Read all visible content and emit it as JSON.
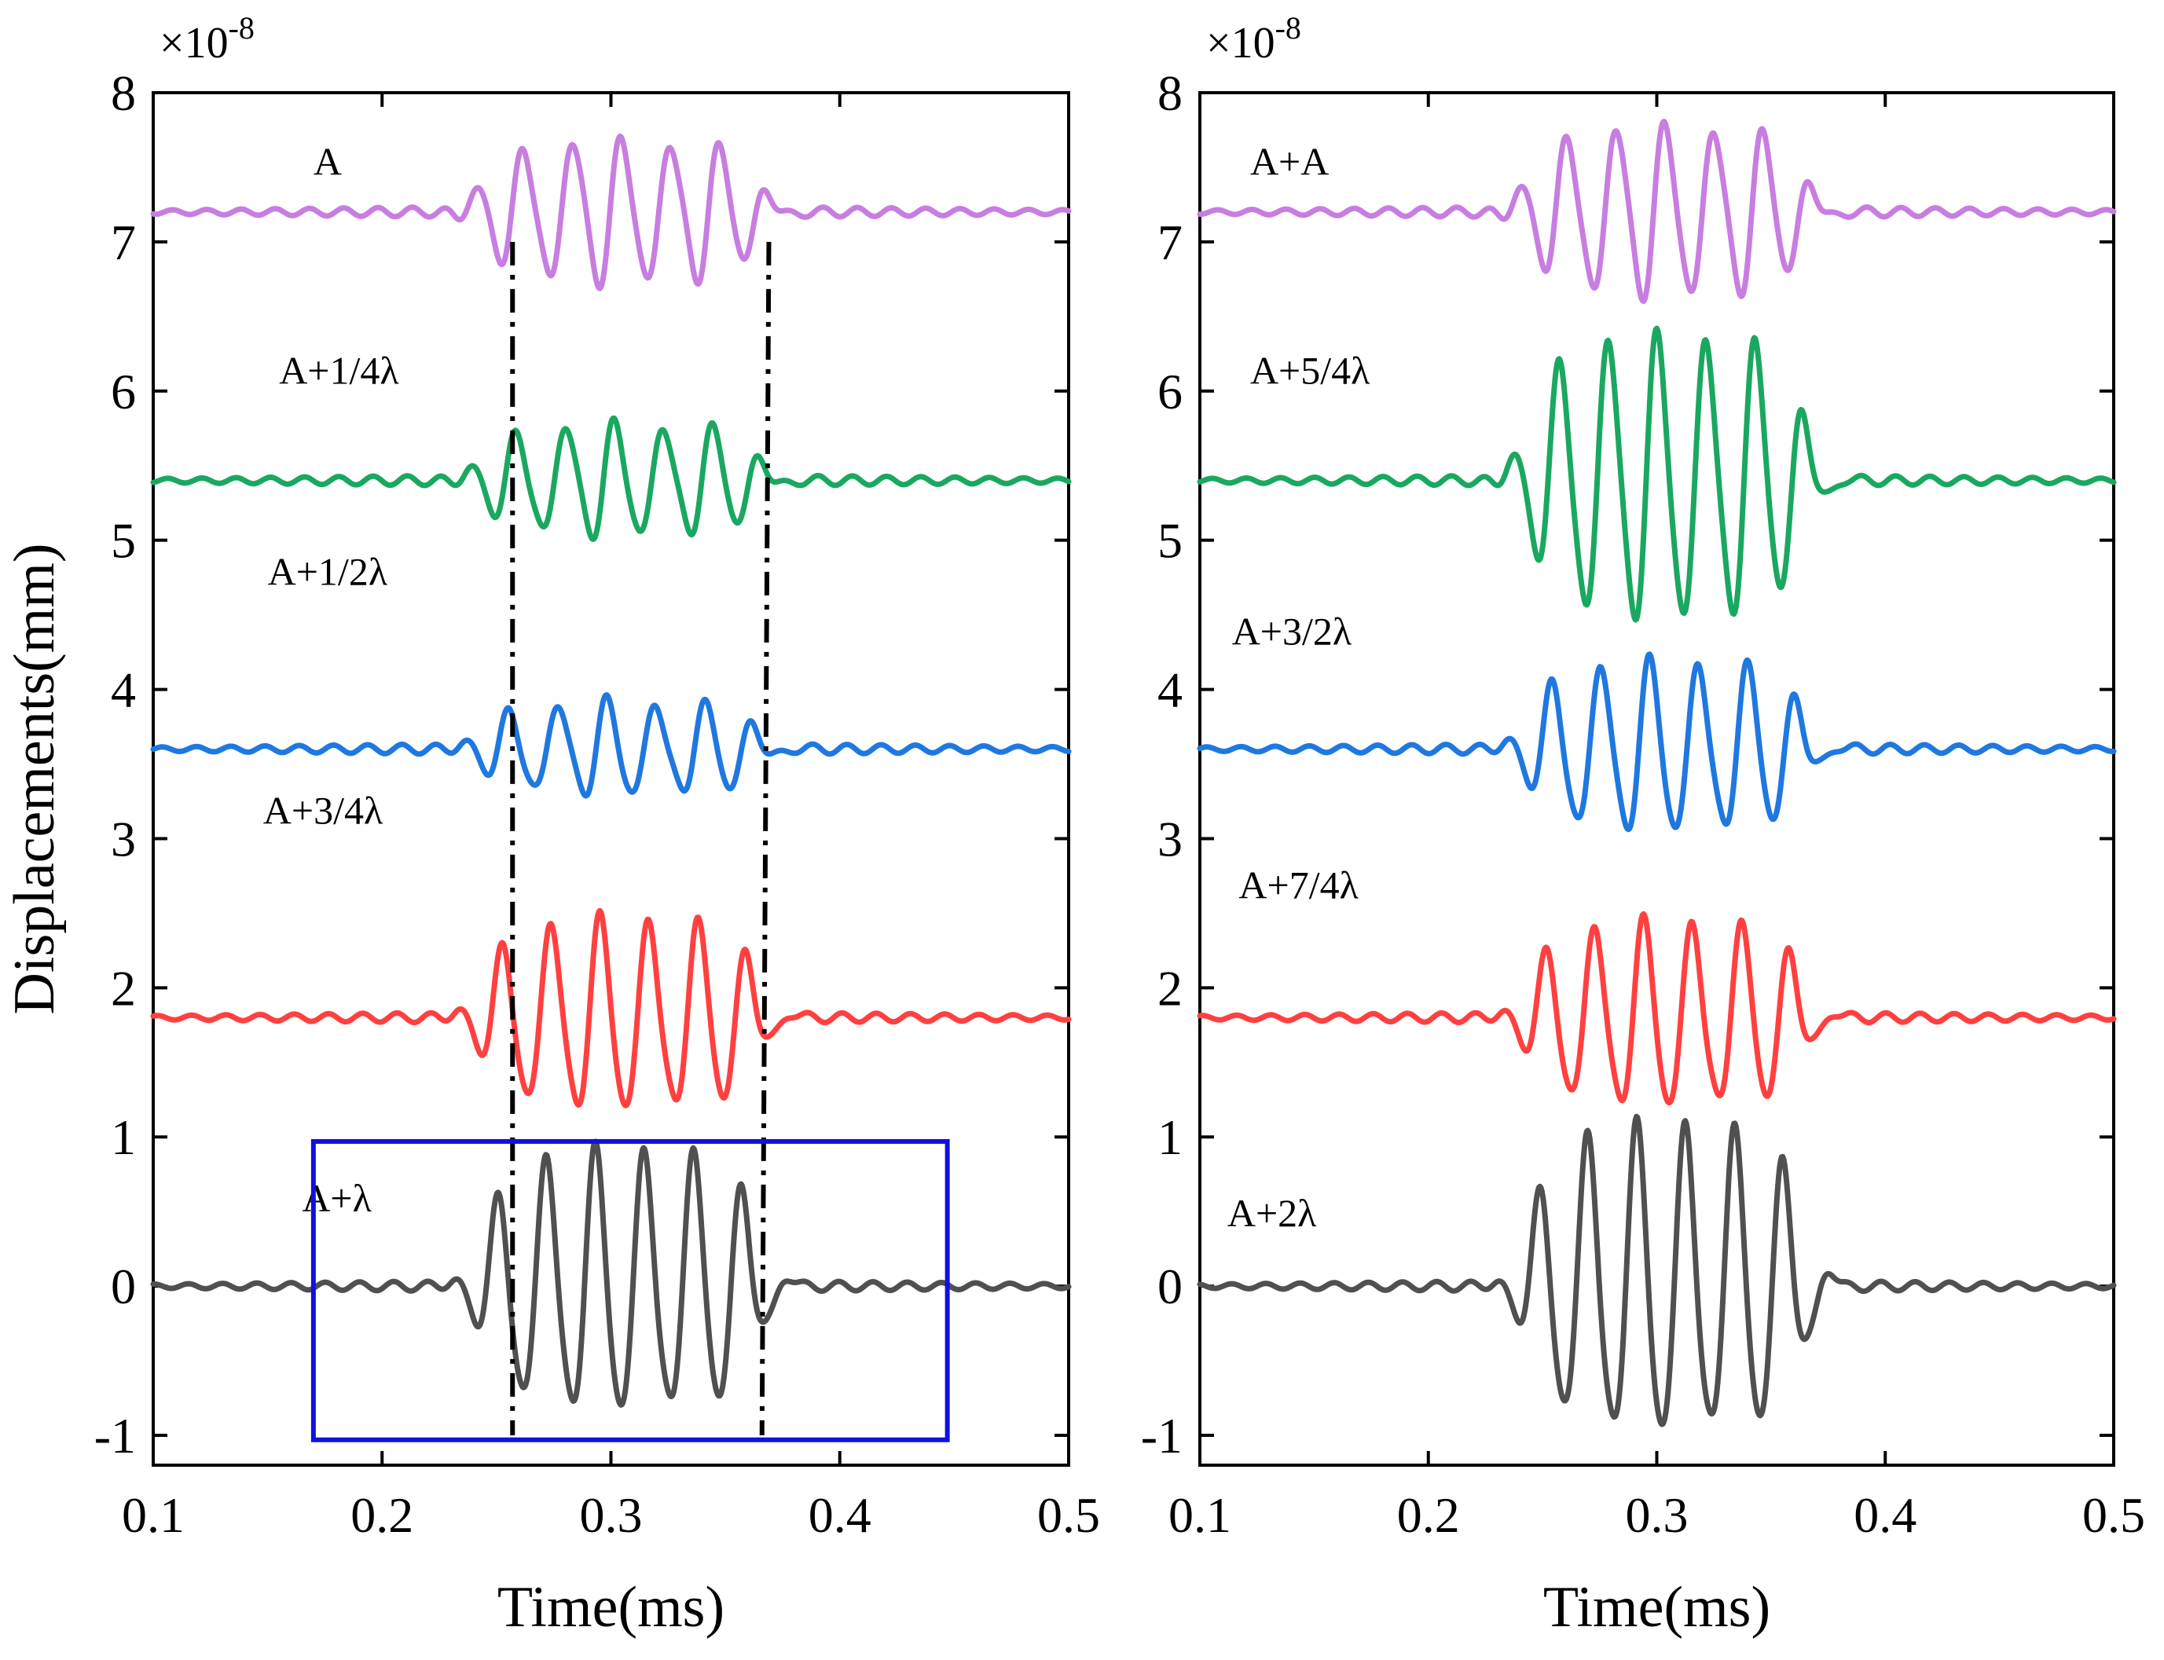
{
  "chart_data": [
    {
      "type": "line",
      "panel": "left",
      "title": "",
      "xlabel": "Time(ms)",
      "ylabel": "Displacements(mm)",
      "scale_label": "×10",
      "scale_exponent": "-8",
      "xlim": [
        0.1,
        0.5
      ],
      "ylim": [
        -1.2,
        8
      ],
      "x_ticks": [
        "0.1",
        "0.2",
        "0.3",
        "0.4",
        "0.5"
      ],
      "y_ticks": [
        "-1",
        "0",
        "1",
        "2",
        "3",
        "4",
        "5",
        "6",
        "7",
        "8"
      ],
      "series": [
        {
          "name": "A",
          "color": "#c77ee0",
          "offset": 7.2,
          "amplitude": 0.46,
          "phase": 0.0,
          "label_at": [
            0.17,
            7.45
          ]
        },
        {
          "name": "A+1/4λ",
          "color": "#1aa860",
          "offset": 5.4,
          "amplitude": 0.36,
          "phase": 0.9,
          "label_at": [
            0.155,
            6.05
          ]
        },
        {
          "name": "A+1/2λ",
          "color": "#1f78e0",
          "offset": 3.6,
          "amplitude": 0.3,
          "phase": 1.9,
          "label_at": [
            0.15,
            4.7
          ]
        },
        {
          "name": "A+3/4λ",
          "color": "#ff4040",
          "offset": 1.8,
          "amplitude": 0.62,
          "phase": 2.8,
          "label_at": [
            0.148,
            3.1
          ]
        },
        {
          "name": "A+λ",
          "color": "#505050",
          "offset": 0.0,
          "amplitude": 0.85,
          "phase": 3.4,
          "label_at": [
            0.165,
            0.5
          ]
        }
      ],
      "guide_lines": [
        {
          "x_top": 0.257,
          "y_top": 7.0,
          "x_bottom": 0.257,
          "y_bottom": -1.0
        },
        {
          "x_top": 0.369,
          "y_top": 7.0,
          "x_bottom": 0.366,
          "y_bottom": -1.0
        }
      ],
      "highlight_box": {
        "x0": 0.17,
        "x1": 0.447,
        "y0": -1.03,
        "y1": 0.97
      }
    },
    {
      "type": "line",
      "panel": "right",
      "title": "",
      "xlabel": "Time(ms)",
      "ylabel": "",
      "scale_label": "×10",
      "scale_exponent": "-8",
      "xlim": [
        0.1,
        0.5
      ],
      "ylim": [
        -1.2,
        8
      ],
      "x_ticks": [
        "0.1",
        "0.2",
        "0.3",
        "0.4",
        "0.5"
      ],
      "y_ticks": [
        "-1",
        "0",
        "1",
        "2",
        "3",
        "4",
        "5",
        "6",
        "7",
        "8"
      ],
      "series": [
        {
          "name": "A+A",
          "color": "#c77ee0",
          "offset": 7.2,
          "amplitude": 0.55,
          "phase": 0.3,
          "label_at": [
            0.122,
            7.45
          ]
        },
        {
          "name": "A+5/4λ",
          "color": "#1aa860",
          "offset": 5.4,
          "amplitude": 0.92,
          "phase": 1.3,
          "label_at": [
            0.122,
            6.05
          ]
        },
        {
          "name": "A+3/2λ",
          "color": "#1f78e0",
          "offset": 3.6,
          "amplitude": 0.55,
          "phase": 2.3,
          "label_at": [
            0.114,
            4.3
          ]
        },
        {
          "name": "A+7/4λ",
          "color": "#ff4040",
          "offset": 1.8,
          "amplitude": 0.6,
          "phase": 3.1,
          "label_at": [
            0.117,
            2.6
          ]
        },
        {
          "name": "A+2λ",
          "color": "#505050",
          "offset": 0.0,
          "amplitude": 1.0,
          "phase": 4.0,
          "label_at": [
            0.112,
            0.4
          ]
        }
      ]
    }
  ]
}
